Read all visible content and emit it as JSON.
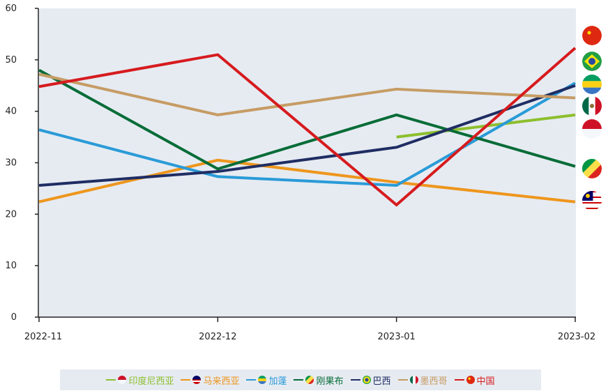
{
  "chart_data": {
    "type": "line",
    "x": [
      "2022-11",
      "2022-12",
      "2023-01",
      "2023-02"
    ],
    "ylim": [
      0,
      60
    ],
    "yticks": [
      0,
      10,
      20,
      30,
      40,
      50,
      60
    ],
    "grid": false,
    "legend_placement": "bottom",
    "series": [
      {
        "name": "印度尼西亚",
        "color": "#8dbf2e",
        "flag": "indonesia-flag",
        "values": [
          null,
          null,
          35.0,
          39.3
        ]
      },
      {
        "name": "马来西亚",
        "color": "#ee961d",
        "flag": "malaysia-flag",
        "values": [
          22.4,
          30.5,
          26.2,
          22.4
        ]
      },
      {
        "name": "加蓬",
        "color": "#2a9bd7",
        "flag": "gabon-flag",
        "values": [
          36.4,
          27.3,
          25.6,
          45.5
        ]
      },
      {
        "name": "刚果布",
        "color": "#076c37",
        "flag": "congo-flag",
        "values": [
          48.0,
          28.8,
          39.3,
          29.3
        ]
      },
      {
        "name": "巴西",
        "color": "#1f2d63",
        "flag": "brazil-flag",
        "values": [
          25.6,
          28.3,
          33.0,
          45.0
        ]
      },
      {
        "name": "墨西哥",
        "color": "#c69c64",
        "flag": "mexico-flag",
        "values": [
          47.2,
          39.3,
          44.3,
          42.6
        ]
      },
      {
        "name": "中国",
        "color": "#d61b1e",
        "flag": "china-flag",
        "values": [
          44.8,
          51.0,
          21.8,
          52.3
        ]
      }
    ]
  }
}
